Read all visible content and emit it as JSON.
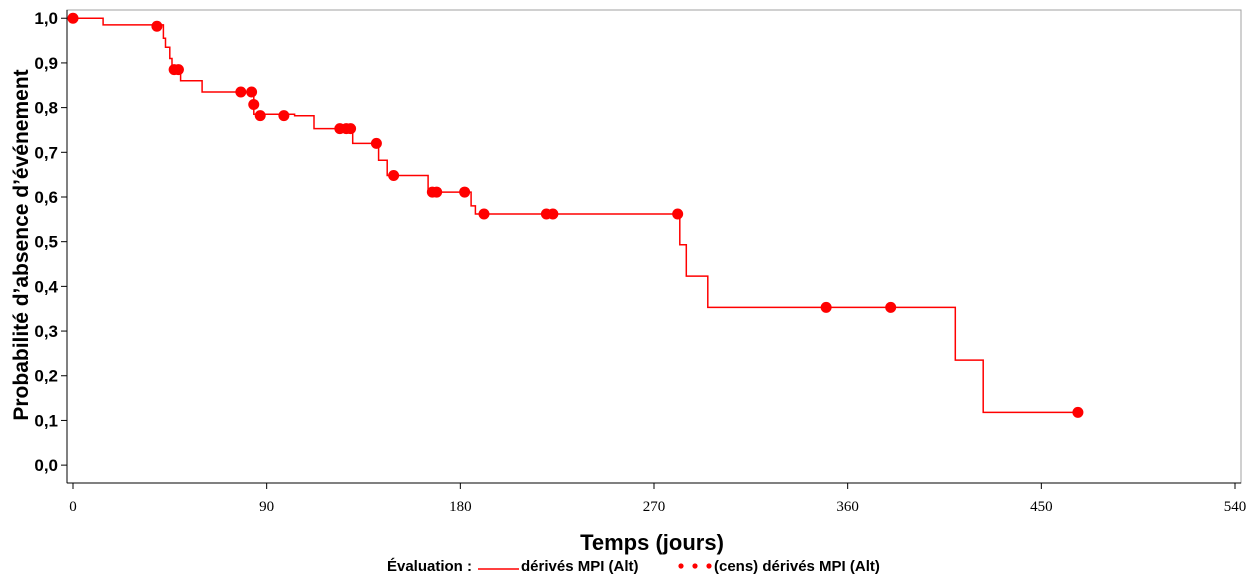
{
  "chart_data": {
    "type": "line",
    "title": "",
    "xlabel": "Temps (jours)",
    "ylabel": "Probabilité d’absence d’événement",
    "xlim": [
      0,
      540
    ],
    "ylim": [
      -0.04,
      1.005
    ],
    "xticks": [
      0,
      90,
      180,
      270,
      360,
      450,
      540
    ],
    "xtick_labels": [
      "0",
      "90",
      "180",
      "270",
      "360",
      "450",
      "540"
    ],
    "yticks": [
      0.0,
      0.1,
      0.2,
      0.3,
      0.4,
      0.5,
      0.6,
      0.7,
      0.8,
      0.9,
      1.0
    ],
    "ytick_labels": [
      "0,0",
      "0,1",
      "0,2",
      "0,3",
      "0,4",
      "0,5",
      "0,6",
      "0,7",
      "0,8",
      "0,9",
      "1,0"
    ],
    "grid": false,
    "legend": {
      "placement": "bottom",
      "title": "Évaluation :",
      "entries": [
        "dérivés MPI (Alt)",
        "(cens) dérivés MPI (Alt)"
      ]
    },
    "colors": {
      "series": "#ff0000",
      "axes": "#000000",
      "frame": "#a0a0a0"
    },
    "series": [
      {
        "name": "dérivés MPI (Alt)",
        "step": true,
        "x": [
          0,
          14,
          14,
          42,
          42,
          43,
          43,
          45,
          45,
          46,
          46,
          50,
          50,
          60,
          60,
          84,
          84,
          103,
          103,
          112,
          112,
          130,
          130,
          142,
          142,
          146,
          146,
          165,
          165,
          185,
          185,
          187,
          187,
          282,
          282,
          285,
          285,
          295,
          295,
          410,
          410,
          423,
          423,
          467
        ],
        "y": [
          1.0,
          1.0,
          0.985,
          0.985,
          0.955,
          0.955,
          0.935,
          0.935,
          0.91,
          0.91,
          0.885,
          0.885,
          0.86,
          0.86,
          0.835,
          0.835,
          0.785,
          0.785,
          0.782,
          0.782,
          0.753,
          0.753,
          0.72,
          0.72,
          0.682,
          0.682,
          0.648,
          0.648,
          0.611,
          0.611,
          0.58,
          0.58,
          0.562,
          0.562,
          0.493,
          0.493,
          0.423,
          0.423,
          0.353,
          0.353,
          0.235,
          0.235,
          0.118,
          0.118
        ]
      }
    ],
    "censored": {
      "name": "(cens) dérivés MPI (Alt)",
      "x": [
        0,
        39,
        47,
        49,
        78,
        83,
        84,
        87,
        98,
        124,
        127,
        129,
        141,
        149,
        167,
        169,
        182,
        191,
        220,
        223,
        281,
        350,
        380,
        467
      ],
      "y": [
        1.0,
        0.982,
        0.885,
        0.885,
        0.835,
        0.835,
        0.807,
        0.782,
        0.782,
        0.753,
        0.753,
        0.753,
        0.72,
        0.648,
        0.611,
        0.611,
        0.611,
        0.562,
        0.562,
        0.562,
        0.562,
        0.353,
        0.353,
        0.118
      ]
    }
  }
}
